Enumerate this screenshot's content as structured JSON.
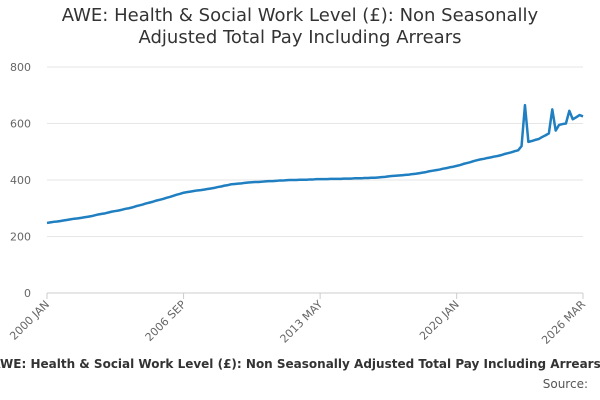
{
  "chart_data": {
    "type": "line",
    "title": "AWE: Health & Social Work Level (£): Non Seasonally Adjusted Total Pay Including Arrears",
    "caption": "AWE: Health & Social Work Level (£): Non Seasonally Adjusted Total Pay Including Arrears",
    "source": "Source:",
    "color": "#1f7fc1",
    "grid": true,
    "ylim": [
      0,
      800
    ],
    "yticks": [
      0,
      200,
      400,
      600,
      800
    ],
    "categories": [
      "2000 JAN",
      null,
      null,
      null,
      null,
      null,
      null,
      null,
      null,
      null,
      null,
      null,
      null,
      null,
      null,
      null,
      null,
      null,
      null,
      null,
      null,
      null,
      null,
      null,
      null,
      null,
      null,
      null,
      null,
      null,
      null,
      null,
      null,
      null,
      null,
      null,
      null,
      null,
      null,
      null,
      "2006 SEP",
      null,
      null,
      null,
      null,
      null,
      null,
      null,
      null,
      null,
      null,
      null,
      null,
      null,
      null,
      null,
      null,
      null,
      null,
      null,
      null,
      null,
      null,
      null,
      null,
      null,
      null,
      null,
      null,
      null,
      null,
      null,
      null,
      null,
      null,
      null,
      null,
      null,
      null,
      null,
      "2013 MAY",
      null,
      null,
      null,
      null,
      null,
      null,
      null,
      null,
      null,
      null,
      null,
      null,
      null,
      null,
      null,
      null,
      null,
      null,
      null,
      null,
      null,
      null,
      null,
      null,
      null,
      null,
      null,
      null,
      null,
      null,
      null,
      null,
      null,
      null,
      null,
      null,
      null,
      null,
      null,
      "2020 JAN",
      null,
      null,
      null,
      null,
      null,
      null,
      null,
      null,
      null,
      null,
      null,
      null,
      null,
      null,
      null,
      null,
      null,
      null,
      null,
      null,
      null,
      null,
      null,
      null,
      null,
      null,
      null,
      null,
      null,
      null,
      null,
      null,
      null,
      null,
      null,
      null,
      "2026 MAR"
    ],
    "values": [
      248,
      250,
      252,
      253,
      255,
      257,
      259,
      261,
      263,
      264,
      266,
      268,
      270,
      272,
      275,
      278,
      280,
      282,
      285,
      288,
      290,
      292,
      295,
      298,
      300,
      303,
      307,
      310,
      313,
      317,
      320,
      323,
      327,
      330,
      333,
      337,
      340,
      344,
      348,
      351,
      355,
      357,
      359,
      361,
      363,
      364,
      366,
      368,
      370,
      372,
      375,
      377,
      380,
      382,
      385,
      386,
      387,
      388,
      390,
      391,
      392,
      393,
      393,
      394,
      395,
      396,
      396,
      397,
      398,
      398,
      399,
      400,
      400,
      400,
      401,
      401,
      401,
      402,
      402,
      403,
      403,
      403,
      403,
      404,
      404,
      404,
      404,
      405,
      405,
      405,
      406,
      406,
      406,
      407,
      407,
      408,
      408,
      409,
      410,
      411,
      413,
      414,
      415,
      416,
      417,
      418,
      419,
      421,
      422,
      424,
      426,
      428,
      431,
      433,
      435,
      437,
      440,
      442,
      445,
      447,
      450,
      453,
      457,
      460,
      463,
      467,
      470,
      473,
      475,
      478,
      480,
      483,
      485,
      488,
      492,
      495,
      498,
      502,
      505,
      520,
      665,
      535,
      538,
      542,
      545,
      552,
      558,
      565,
      650,
      575,
      595,
      598,
      600,
      645,
      615,
      622,
      630,
      625
    ]
  }
}
